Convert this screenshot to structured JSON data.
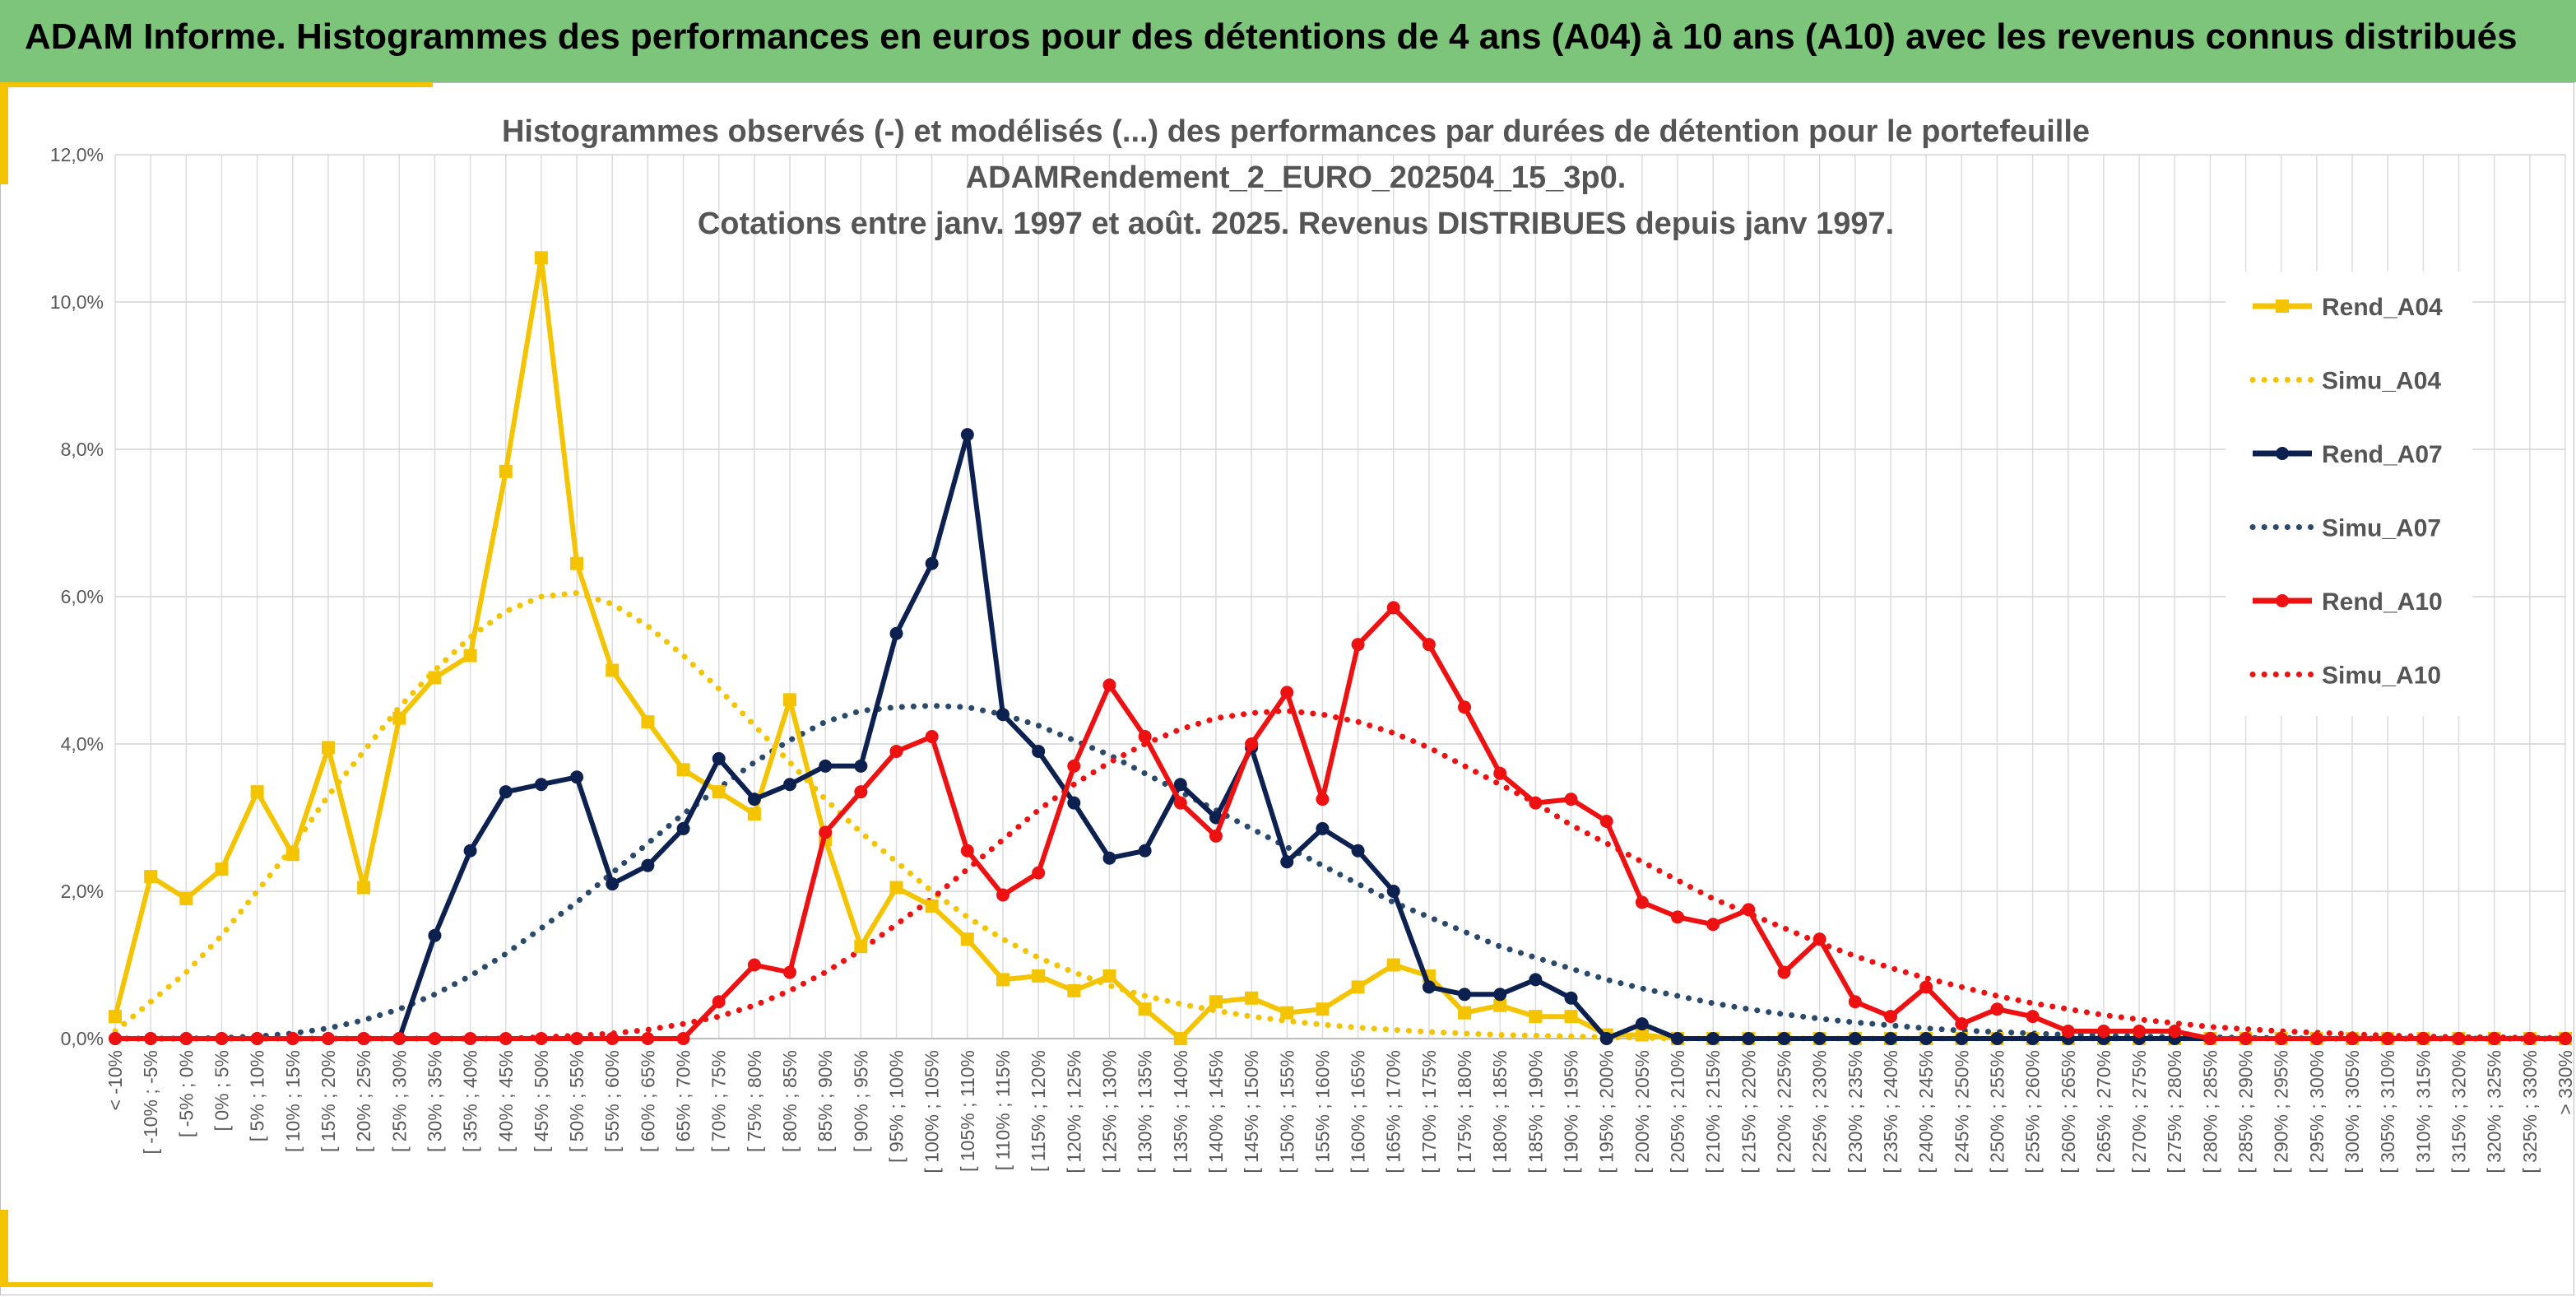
{
  "header": {
    "title": "ADAM Informe. Histogrammes des performances en euros pour des détentions de 4 ans (A04) à 10 ans (A10) avec les revenus connus distribués"
  },
  "colors": {
    "banner": "#7dc57a",
    "accent": "#f5c400",
    "a04": "#f5c400",
    "a07": "#0d2151",
    "a07_simu": "#2b4a6b",
    "a10": "#ee1111"
  },
  "chart_data": {
    "type": "line",
    "title_lines": [
      "Histogrammes observés (-) et modélisés (...) des performances par durées de détention pour le portefeuille",
      "ADAMRendement_2_EURO_202504_15_3p0.",
      "Cotations entre janv. 1997 et août. 2025. Revenus DISTRIBUES depuis janv 1997."
    ],
    "yticks": [
      "0,0%",
      "2,0%",
      "4,0%",
      "6,0%",
      "8,0%",
      "10,0%",
      "12,0%"
    ],
    "ylim": [
      0,
      12
    ],
    "grid": true,
    "legend_position": "right",
    "categories": [
      "< -10%",
      "[ -10% ; -5%",
      "[ -5% ; 0%",
      "[ 0% ; 5%",
      "[ 5% ; 10%",
      "[ 10% ; 15%",
      "[ 15% ; 20%",
      "[ 20% ; 25%",
      "[ 25% ; 30%",
      "[ 30% ; 35%",
      "[ 35% ; 40%",
      "[ 40% ; 45%",
      "[ 45% ; 50%",
      "[ 50% ; 55%",
      "[ 55% ; 60%",
      "[ 60% ; 65%",
      "[ 65% ; 70%",
      "[ 70% ; 75%",
      "[ 75% ; 80%",
      "[ 80% ; 85%",
      "[ 85% ; 90%",
      "[ 90% ; 95%",
      "[ 95% ; 100%",
      "[ 100% ; 105%",
      "[ 105% ; 110%",
      "[ 110% ; 115%",
      "[ 115% ; 120%",
      "[ 120% ; 125%",
      "[ 125% ; 130%",
      "[ 130% ; 135%",
      "[ 135% ; 140%",
      "[ 140% ; 145%",
      "[ 145% ; 150%",
      "[ 150% ; 155%",
      "[ 155% ; 160%",
      "[ 160% ; 165%",
      "[ 165% ; 170%",
      "[ 170% ; 175%",
      "[ 175% ; 180%",
      "[ 180% ; 185%",
      "[ 185% ; 190%",
      "[ 190% ; 195%",
      "[ 195% ; 200%",
      "[ 200% ; 205%",
      "[ 205% ; 210%",
      "[ 210% ; 215%",
      "[ 215% ; 220%",
      "[ 220% ; 225%",
      "[ 225% ; 230%",
      "[ 230% ; 235%",
      "[ 235% ; 240%",
      "[ 240% ; 245%",
      "[ 245% ; 250%",
      "[ 250% ; 255%",
      "[ 255% ; 260%",
      "[ 260% ; 265%",
      "[ 265% ; 270%",
      "[ 270% ; 275%",
      "[ 275% ; 280%",
      "[ 280% ; 285%",
      "[ 285% ; 290%",
      "[ 290% ; 295%",
      "[ 295% ; 300%",
      "[ 300% ; 305%",
      "[ 305% ; 310%",
      "[ 310% ; 315%",
      "[ 315% ; 320%",
      "[ 320% ; 325%",
      "[ 325% ; 330%",
      "> 330%"
    ],
    "series": [
      {
        "name": "Rend_A04",
        "style": "solid",
        "marker": "square",
        "color": "#f5c400",
        "values": [
          0.3,
          2.2,
          1.9,
          2.3,
          3.35,
          2.5,
          3.95,
          2.05,
          4.35,
          4.9,
          5.2,
          7.7,
          10.6,
          6.45,
          5.0,
          4.3,
          3.65,
          3.35,
          3.05,
          4.6,
          2.7,
          1.25,
          2.05,
          1.8,
          1.35,
          0.8,
          0.85,
          0.65,
          0.85,
          0.4,
          0.0,
          0.5,
          0.55,
          0.35,
          0.4,
          0.7,
          1.0,
          0.85,
          0.35,
          0.45,
          0.3,
          0.3,
          0.05,
          0.05,
          0.0,
          0.0,
          0.0,
          0.0,
          0.0,
          0.0,
          0.0,
          0.0,
          0.0,
          0.0,
          0.0,
          0.0,
          0.0,
          0.0,
          0.0,
          0.0,
          0.0,
          0.0,
          0.0,
          0.0,
          0.0,
          0.0,
          0.0,
          0.0,
          0.0,
          0.0
        ]
      },
      {
        "name": "Simu_A04",
        "style": "dotted",
        "color": "#f5c400",
        "values": [
          0.1,
          0.5,
          0.9,
          1.4,
          2.0,
          2.6,
          3.3,
          3.9,
          4.5,
          5.0,
          5.45,
          5.8,
          6.0,
          6.05,
          5.9,
          5.6,
          5.2,
          4.75,
          4.25,
          3.75,
          3.25,
          2.8,
          2.4,
          2.0,
          1.65,
          1.35,
          1.1,
          0.9,
          0.72,
          0.58,
          0.47,
          0.38,
          0.3,
          0.24,
          0.19,
          0.15,
          0.12,
          0.09,
          0.07,
          0.05,
          0.04,
          0.03,
          0.02,
          0.01,
          0.0,
          0.0,
          0.0,
          0.0,
          0.0,
          0.0,
          0.0,
          0.0,
          0.0,
          0.0,
          0.0,
          0.0,
          0.0,
          0.0,
          0.0,
          0.0,
          0.0,
          0.0,
          0.0,
          0.0,
          0.0,
          0.0,
          0.0,
          0.0,
          0.0,
          0.0
        ]
      },
      {
        "name": "Rend_A07",
        "style": "solid",
        "marker": "circle",
        "color": "#0d2151",
        "values": [
          0.0,
          0.0,
          0.0,
          0.0,
          0.0,
          0.0,
          0.0,
          0.0,
          0.0,
          1.4,
          2.55,
          3.35,
          3.45,
          3.55,
          2.1,
          2.35,
          2.85,
          3.8,
          3.25,
          3.45,
          3.7,
          3.7,
          5.5,
          6.45,
          8.2,
          4.4,
          3.9,
          3.2,
          2.45,
          2.55,
          3.45,
          3.0,
          3.95,
          2.4,
          2.85,
          2.55,
          2.0,
          0.7,
          0.6,
          0.6,
          0.8,
          0.55,
          0.0,
          0.2,
          0.0,
          0.0,
          0.0,
          0.0,
          0.0,
          0.0,
          0.0,
          0.0,
          0.0,
          0.0,
          0.0,
          0.0,
          0.0,
          0.0,
          0.0,
          0.0,
          0.0,
          0.0,
          0.0,
          0.0,
          0.0,
          0.0,
          0.0,
          0.0,
          0.0,
          0.0
        ]
      },
      {
        "name": "Simu_A07",
        "style": "dotted",
        "color": "#2b4a6b",
        "values": [
          0.0,
          0.0,
          0.0,
          0.01,
          0.03,
          0.07,
          0.14,
          0.25,
          0.4,
          0.6,
          0.85,
          1.15,
          1.5,
          1.85,
          2.25,
          2.65,
          3.05,
          3.4,
          3.75,
          4.05,
          4.3,
          4.45,
          4.5,
          4.52,
          4.5,
          4.4,
          4.25,
          4.05,
          3.85,
          3.6,
          3.35,
          3.1,
          2.85,
          2.6,
          2.35,
          2.1,
          1.85,
          1.65,
          1.45,
          1.25,
          1.1,
          0.95,
          0.8,
          0.68,
          0.58,
          0.48,
          0.4,
          0.33,
          0.27,
          0.22,
          0.18,
          0.14,
          0.11,
          0.09,
          0.07,
          0.05,
          0.04,
          0.03,
          0.02,
          0.02,
          0.01,
          0.01,
          0.0,
          0.0,
          0.0,
          0.0,
          0.0,
          0.0,
          0.0,
          0.0
        ]
      },
      {
        "name": "Rend_A10",
        "style": "solid",
        "marker": "circle",
        "color": "#ee1111",
        "values": [
          0.0,
          0.0,
          0.0,
          0.0,
          0.0,
          0.0,
          0.0,
          0.0,
          0.0,
          0.0,
          0.0,
          0.0,
          0.0,
          0.0,
          0.0,
          0.0,
          0.0,
          0.5,
          1.0,
          0.9,
          2.8,
          3.35,
          3.9,
          4.1,
          2.55,
          1.95,
          2.25,
          3.7,
          4.8,
          4.1,
          3.2,
          2.75,
          4.0,
          4.7,
          3.25,
          5.35,
          5.85,
          5.35,
          4.5,
          3.6,
          3.2,
          3.25,
          2.95,
          1.85,
          1.65,
          1.55,
          1.75,
          0.9,
          1.35,
          0.5,
          0.3,
          0.7,
          0.2,
          0.4,
          0.3,
          0.1,
          0.1,
          0.1,
          0.1,
          0.0,
          0.0,
          0.0,
          0.0,
          0.0,
          0.0,
          0.0,
          0.0,
          0.0,
          0.0,
          0.0
        ]
      },
      {
        "name": "Simu_A10",
        "style": "dotted",
        "color": "#ee1111",
        "values": [
          0.0,
          0.0,
          0.0,
          0.0,
          0.0,
          0.0,
          0.0,
          0.0,
          0.0,
          0.0,
          0.0,
          0.0,
          0.02,
          0.04,
          0.07,
          0.12,
          0.2,
          0.3,
          0.45,
          0.65,
          0.9,
          1.2,
          1.55,
          1.9,
          2.3,
          2.7,
          3.1,
          3.45,
          3.75,
          4.0,
          4.2,
          4.35,
          4.42,
          4.45,
          4.4,
          4.3,
          4.15,
          3.95,
          3.7,
          3.45,
          3.2,
          2.9,
          2.65,
          2.4,
          2.15,
          1.9,
          1.7,
          1.5,
          1.3,
          1.12,
          0.96,
          0.82,
          0.7,
          0.58,
          0.48,
          0.4,
          0.32,
          0.26,
          0.21,
          0.16,
          0.13,
          0.1,
          0.08,
          0.06,
          0.04,
          0.03,
          0.02,
          0.02,
          0.01,
          0.01
        ]
      }
    ]
  }
}
